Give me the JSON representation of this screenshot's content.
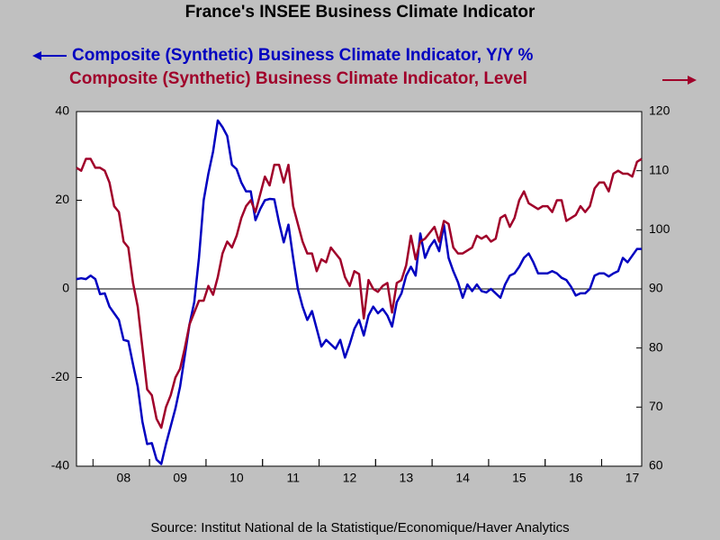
{
  "chart_data": {
    "type": "line",
    "title": "France's INSEE Business Climate Indicator",
    "source": "Source:  Institut National de la Statistique/Economique/Haver Analytics",
    "categories": [
      null,
      null,
      null,
      null,
      null,
      null,
      null,
      null,
      null,
      null,
      "08",
      null,
      null,
      null,
      null,
      null,
      null,
      null,
      null,
      null,
      null,
      null,
      "09",
      null,
      null,
      null,
      null,
      null,
      null,
      null,
      null,
      null,
      null,
      null,
      "10",
      null,
      null,
      null,
      null,
      null,
      null,
      null,
      null,
      null,
      null,
      null,
      "11",
      null,
      null,
      null,
      null,
      null,
      null,
      null,
      null,
      null,
      null,
      null,
      "12",
      null,
      null,
      null,
      null,
      null,
      null,
      null,
      null,
      null,
      null,
      null,
      "13",
      null,
      null,
      null,
      null,
      null,
      null,
      null,
      null,
      null,
      null,
      null,
      "14",
      null,
      null,
      null,
      null,
      null,
      null,
      null,
      null,
      null,
      null,
      null,
      "15",
      null,
      null,
      null,
      null,
      null,
      null,
      null,
      null,
      null,
      null,
      null,
      "16",
      null,
      null,
      null,
      null,
      null,
      null,
      null,
      null,
      null,
      null,
      null,
      "17",
      null,
      null
    ],
    "series": [
      {
        "name": "Composite (Synthetic) Business Climate Indicator, Y/Y %",
        "color": "#0000c0",
        "axis": "y",
        "values": [
          2.2,
          2.4,
          2.2,
          3.0,
          2.2,
          -1.2,
          -1.0,
          -4,
          -5.5,
          -7,
          -11.5,
          -11.8,
          -17,
          -22,
          -30,
          -35,
          -34.8,
          -38.5,
          -39.5,
          -35,
          -31,
          -27,
          -22,
          -15,
          -8,
          -3,
          7,
          20,
          26,
          31,
          38,
          36.5,
          34.5,
          28,
          27,
          24,
          22,
          22,
          15.5,
          18,
          20,
          20.3,
          20.2,
          15,
          10.5,
          14.5,
          7,
          0,
          -4,
          -7,
          -5,
          -9,
          -13,
          -11.5,
          -12.5,
          -13.5,
          -11.5,
          -15.5,
          -12.5,
          -9,
          -7,
          -10.5,
          -6,
          -4,
          -5.5,
          -4.5,
          -6,
          -8.5,
          -3,
          -1,
          3,
          5,
          3,
          12.5,
          7,
          9.5,
          11,
          8.5,
          14.5,
          7,
          4,
          1.5,
          -2,
          1,
          -0.5,
          1,
          -0.5,
          -0.8,
          0,
          -1,
          -2,
          1,
          3,
          3.5,
          5,
          7,
          8,
          6,
          3.5,
          3.5,
          3.5,
          4,
          3.5,
          2.5,
          2,
          0.5,
          -1.5,
          -1,
          -1,
          0,
          3,
          3.5,
          3.5,
          2.8,
          3.5,
          4,
          7,
          6,
          7.5,
          9,
          9
        ]
      },
      {
        "name": "Composite (Synthetic) Business Climate Indicator, Level",
        "color": "#a0002a",
        "axis": "y2",
        "values": [
          110.5,
          110,
          112,
          112,
          110.5,
          110.5,
          110,
          108,
          104,
          103,
          98,
          97,
          91,
          87,
          80,
          73,
          72,
          68,
          66.5,
          70,
          72,
          75,
          76.5,
          80,
          84,
          86,
          88,
          88,
          90.5,
          89,
          92,
          96,
          98,
          97,
          99,
          102,
          104,
          105,
          103,
          106,
          109,
          107.5,
          111,
          111,
          108,
          111,
          104,
          101,
          98,
          96,
          96,
          93,
          95,
          94.5,
          97,
          96,
          95,
          92,
          90.5,
          93,
          92.5,
          85,
          91.5,
          90,
          89.5,
          90.5,
          91,
          86,
          91,
          91.5,
          94,
          99,
          95,
          98,
          98.5,
          99.5,
          100.5,
          98,
          101.5,
          101,
          97,
          96,
          96,
          96.5,
          97,
          99,
          98.5,
          99,
          98,
          98.5,
          102,
          102.5,
          100.5,
          102,
          105,
          106.5,
          104.5,
          104,
          103.5,
          104,
          104,
          103,
          105,
          105,
          101.5,
          102,
          102.5,
          104,
          103,
          104,
          107,
          108,
          108,
          106.5,
          109.5,
          110,
          109.5,
          109.5,
          109,
          111.5,
          112
        ]
      }
    ],
    "ylim": [
      -40,
      40
    ],
    "yticks": [
      -40,
      -20,
      0,
      20,
      40
    ],
    "y2lim": [
      60,
      120
    ],
    "y2ticks": [
      60,
      70,
      80,
      90,
      100,
      110,
      120
    ],
    "zero_line": true
  }
}
